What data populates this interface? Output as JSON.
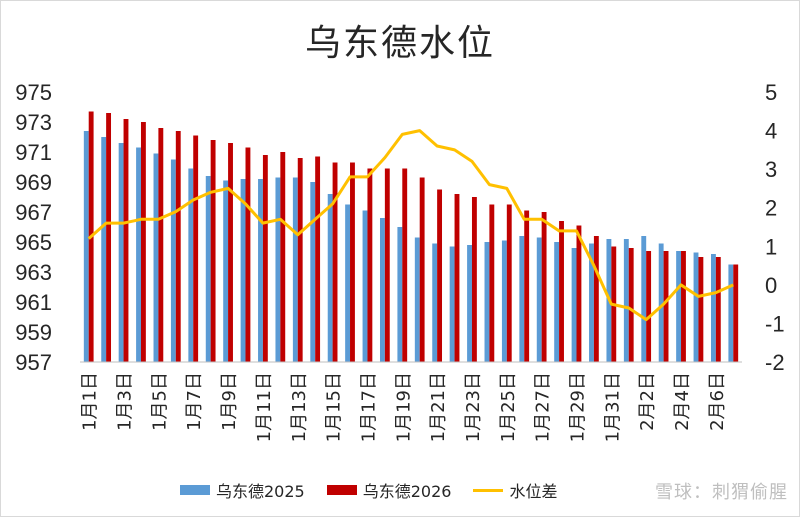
{
  "colors": {
    "series_2025": "#5b9bd5",
    "series_2026": "#c00000",
    "diff_line": "#ffc000",
    "axis_text": "#262626"
  },
  "watermark": "雪球：刺猬偷腥",
  "chart_data": {
    "type": "bar",
    "title": "乌东德水位",
    "categories": [
      "1月1日",
      "1月2日",
      "1月3日",
      "1月4日",
      "1月5日",
      "1月6日",
      "1月7日",
      "1月8日",
      "1月9日",
      "1月10日",
      "1月11日",
      "1月12日",
      "1月13日",
      "1月14日",
      "1月15日",
      "1月16日",
      "1月17日",
      "1月18日",
      "1月19日",
      "1月20日",
      "1月21日",
      "1月22日",
      "1月23日",
      "1月24日",
      "1月25日",
      "1月26日",
      "1月27日",
      "1月28日",
      "1月29日",
      "1月30日",
      "1月31日",
      "2月1日",
      "2月2日",
      "2月3日",
      "2月4日",
      "2月5日",
      "2月6日",
      "2月7日"
    ],
    "x_tick_labels": [
      "1月1日",
      "1月3日",
      "1月5日",
      "1月7日",
      "1月9日",
      "1月11日",
      "1月13日",
      "1月15日",
      "1月17日",
      "1月19日",
      "1月21日",
      "1月23日",
      "1月25日",
      "1月27日",
      "1月29日",
      "1月31日",
      "2月2日",
      "2月4日",
      "2月6日"
    ],
    "ylim": [
      957,
      975
    ],
    "yticks": [
      957,
      959,
      961,
      963,
      965,
      967,
      969,
      971,
      973,
      975
    ],
    "y2lim": [
      -2,
      5
    ],
    "y2ticks": [
      -2,
      -1,
      0,
      1,
      2,
      3,
      4,
      5
    ],
    "legend_position": "bottom",
    "series": [
      {
        "name": "乌东德2025",
        "axis": "left",
        "kind": "bar",
        "values": [
          972.4,
          972.0,
          971.6,
          971.3,
          970.9,
          970.5,
          969.9,
          969.4,
          969.1,
          969.2,
          969.2,
          969.3,
          969.3,
          969.0,
          968.2,
          967.5,
          967.1,
          966.6,
          966.0,
          965.3,
          964.9,
          964.7,
          964.8,
          965.0,
          965.1,
          965.4,
          965.3,
          965.0,
          964.6,
          964.9,
          965.2,
          965.2,
          965.4,
          964.9,
          964.4,
          964.3,
          964.2,
          963.5
        ]
      },
      {
        "name": "乌东德2026",
        "axis": "left",
        "kind": "bar",
        "values": [
          973.7,
          973.6,
          973.2,
          973.0,
          972.6,
          972.4,
          972.1,
          971.8,
          971.6,
          971.3,
          970.8,
          971.0,
          970.6,
          970.7,
          970.3,
          970.3,
          969.9,
          969.9,
          969.9,
          969.3,
          968.5,
          968.2,
          968.0,
          967.5,
          967.5,
          967.1,
          967.0,
          966.4,
          966.1,
          965.4,
          964.7,
          964.6,
          964.4,
          964.4,
          964.4,
          964.0,
          964.0,
          963.5
        ]
      },
      {
        "name": "水位差",
        "axis": "right",
        "kind": "line",
        "values": [
          1.2,
          1.6,
          1.6,
          1.7,
          1.7,
          1.9,
          2.2,
          2.4,
          2.5,
          2.1,
          1.6,
          1.7,
          1.3,
          1.7,
          2.1,
          2.8,
          2.8,
          3.3,
          3.9,
          4.0,
          3.6,
          3.5,
          3.2,
          2.6,
          2.5,
          1.7,
          1.7,
          1.4,
          1.4,
          0.5,
          -0.5,
          -0.6,
          -0.9,
          -0.5,
          0.0,
          -0.3,
          -0.2,
          0.0
        ]
      }
    ]
  }
}
